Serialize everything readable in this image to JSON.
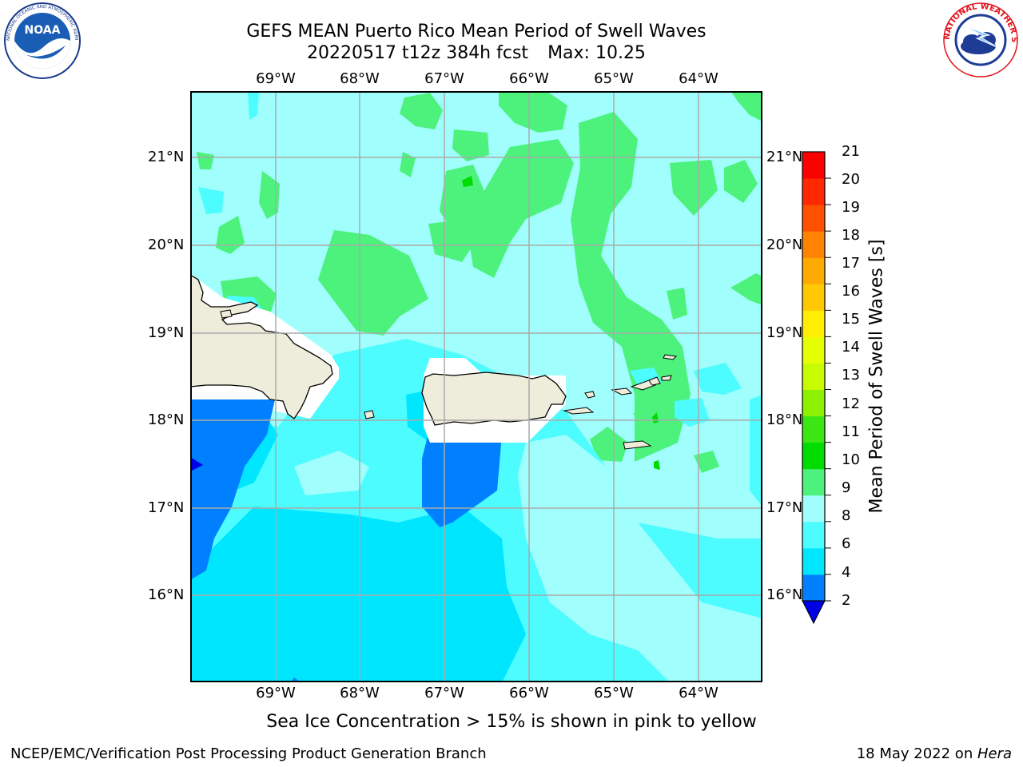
{
  "header": {
    "title_line1": "GEFS MEAN Puerto Rico Mean Period of Swell Waves",
    "run": "20220517 t12z 384h fcst",
    "max_text": "Max: 10.25"
  },
  "logos": {
    "left": {
      "text": "NOAA",
      "ring_text": "NATIONAL OCEANIC AND ATMOSPHERIC ADMINISTRATION · U.S. DEPARTMENT OF COMMERCE",
      "icon": "noaa-logo",
      "color": "#1a5db5"
    },
    "right": {
      "ring_text": "NATIONAL WEATHER SERVICE",
      "icon": "nws-logo",
      "color": "#e3141b"
    }
  },
  "map": {
    "lon_labels": [
      "69°W",
      "68°W",
      "67°W",
      "66°W",
      "65°W",
      "64°W"
    ],
    "lat_labels": [
      "21°N",
      "20°N",
      "19°N",
      "18°N",
      "17°N",
      "16°N"
    ],
    "land_color": "#eeecda",
    "grid_color": "#aaaaaa"
  },
  "colorbar": {
    "title": "Mean Period of Swell Waves [s]",
    "ticks": [
      "2",
      "4",
      "6",
      "8",
      "9",
      "10",
      "11",
      "12",
      "13",
      "14",
      "15",
      "16",
      "17",
      "18",
      "19",
      "20",
      "21"
    ],
    "colors": [
      "#0000e6",
      "#0080ff",
      "#00e6ff",
      "#4dfcff",
      "#a0fffc",
      "#4cf27c",
      "#00dc00",
      "#3ce614",
      "#8cf000",
      "#c8fa00",
      "#e6ff00",
      "#ffee00",
      "#ffc800",
      "#ffaa00",
      "#ff8200",
      "#ff5000",
      "#ff2800",
      "#ff0000"
    ]
  },
  "chart_data": {
    "type": "heatmap",
    "title": "GEFS MEAN Puerto Rico Mean Period of Swell Waves",
    "subtitle": "20220517 t12z 384h fcst   Max: 10.25",
    "variable": "Mean Period of Swell Waves [s]",
    "lon_range": [
      -69.0,
      -63.25
    ],
    "lat_range": [
      15.0,
      21.75
    ],
    "max_value": 10.25,
    "contour_levels": [
      2,
      4,
      6,
      8,
      9,
      10,
      11,
      12,
      13,
      14,
      15,
      16,
      17,
      18,
      19,
      20,
      21
    ]
  },
  "notes": {
    "sea_ice": "Sea Ice Concentration > 15% is shown in pink to yellow"
  },
  "footer": {
    "left": "NCEP/EMC/Verification Post Processing Product Generation Branch",
    "date": "18 May 2022 on ",
    "host": "Hera"
  }
}
